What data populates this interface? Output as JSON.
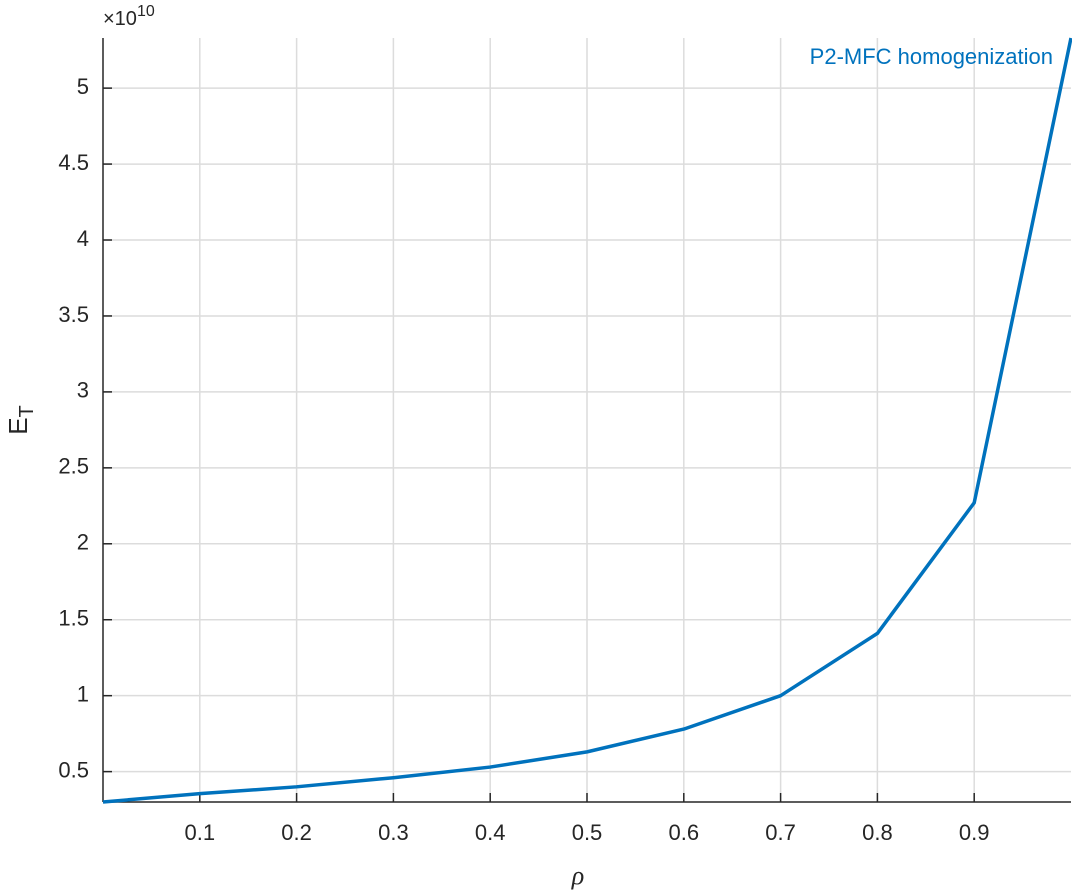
{
  "chart_data": {
    "type": "line",
    "xlabel": "ρ",
    "ylabel": {
      "base": "E",
      "sub": "T"
    },
    "y_exponent": {
      "base": "×10",
      "power": "10"
    },
    "x": [
      0,
      0.1,
      0.2,
      0.3,
      0.4,
      0.5,
      0.6,
      0.7,
      0.8,
      0.9,
      1.0
    ],
    "series": [
      {
        "name": "P2-MFC homogenization",
        "color": "#0072bd",
        "values": [
          0.3,
          0.355,
          0.4,
          0.46,
          0.53,
          0.63,
          0.78,
          1.0,
          1.41,
          2.27,
          5.33
        ]
      }
    ],
    "xlim": [
      0,
      1
    ],
    "xticks": [
      0.1,
      0.2,
      0.3,
      0.4,
      0.5,
      0.6,
      0.7,
      0.8,
      0.9
    ],
    "ylim": [
      0.3,
      5.33
    ],
    "yticks": [
      0.5,
      1,
      1.5,
      2,
      2.5,
      3,
      3.5,
      4,
      4.5,
      5
    ],
    "grid": true,
    "legend": "top-right"
  }
}
